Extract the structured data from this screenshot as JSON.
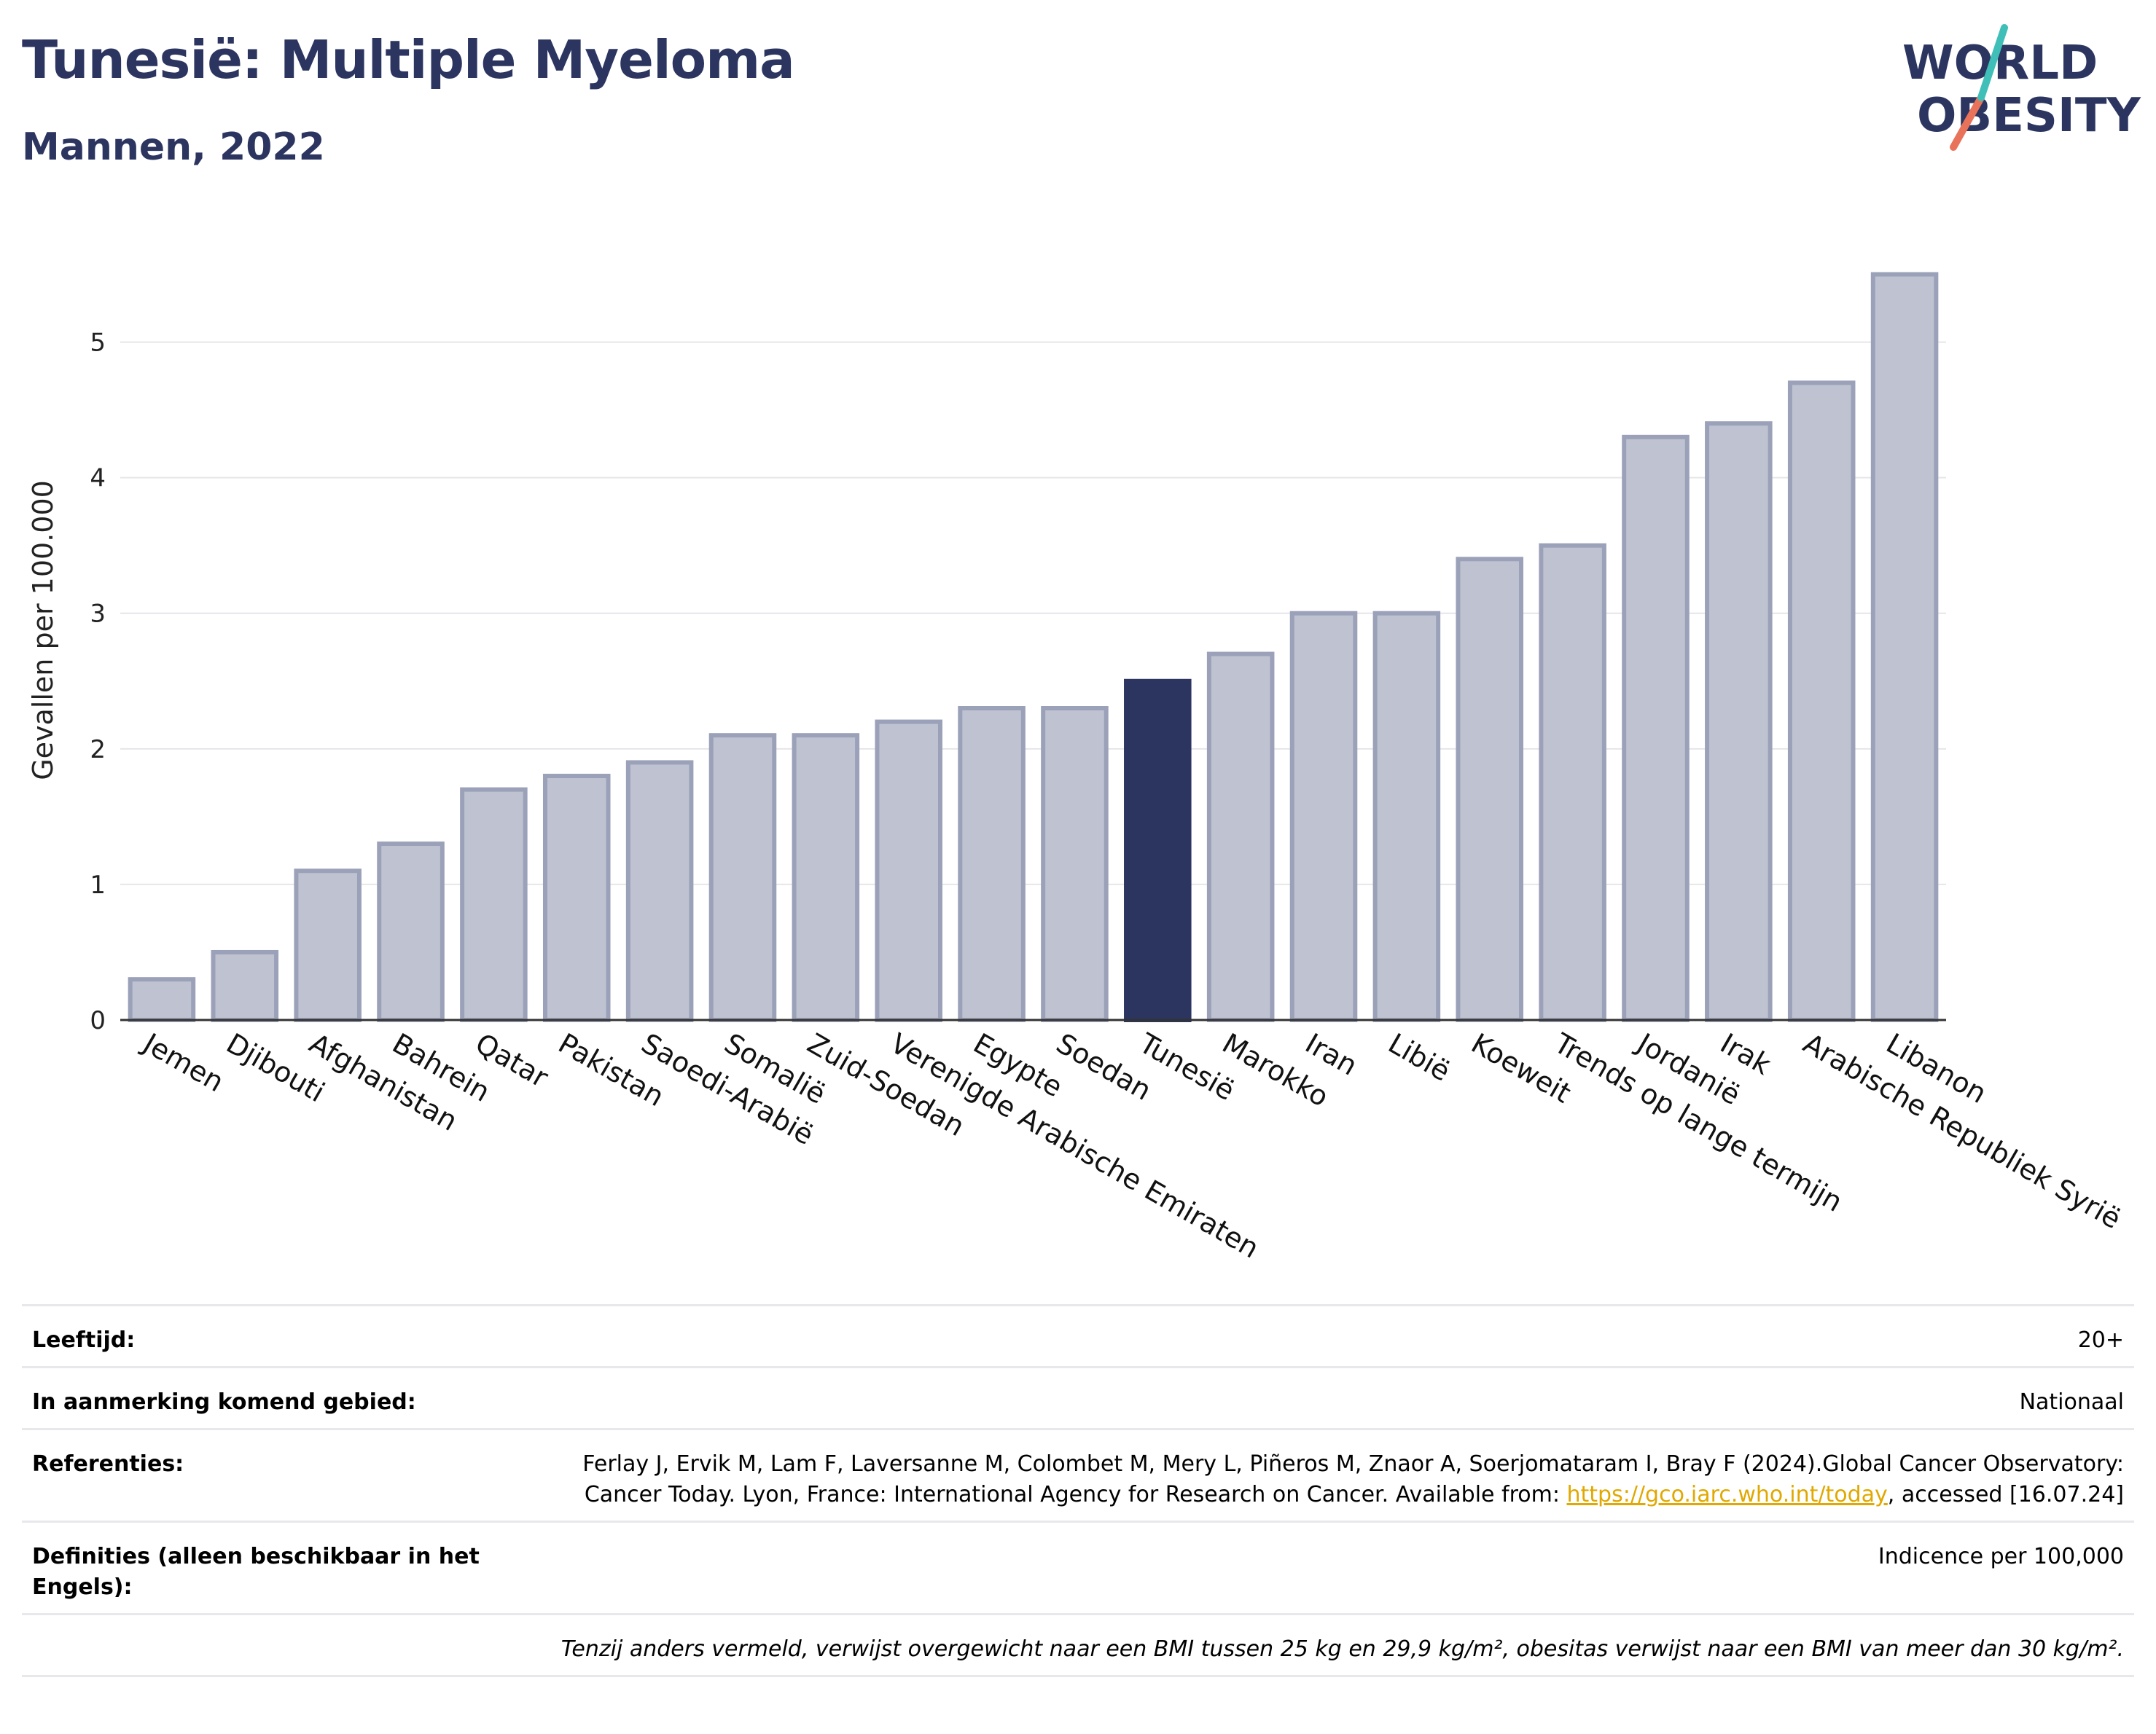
{
  "header": {
    "title": "Tunesië: Multiple Myeloma",
    "subtitle": "Mannen, 2022",
    "logo_line1": "WORLD",
    "logo_line2": "OBESITY"
  },
  "chart_data": {
    "type": "bar",
    "ylabel": "Gevallen per 100.000",
    "ylim": [
      0,
      5.75
    ],
    "yticks": [
      "0",
      "1",
      "2",
      "3",
      "4",
      "5"
    ],
    "grid": true,
    "categories": [
      "Jemen",
      "Djibouti",
      "Afghanistan",
      "Bahrein",
      "Qatar",
      "Pakistan",
      "Saoedi-Arabië",
      "Somalië",
      "Zuid-Soedan",
      "Verenigde Arabische Emiraten",
      "Egypte",
      "Soedan",
      "Tunesië",
      "Marokko",
      "Iran",
      "Libië",
      "Koeweit",
      "Trends op lange termijn",
      "Jordanië",
      "Irak",
      "Arabische Republiek Syrië",
      "Libanon"
    ],
    "values": [
      0.3,
      0.5,
      1.1,
      1.3,
      1.7,
      1.8,
      1.9,
      2.1,
      2.1,
      2.2,
      2.3,
      2.3,
      2.5,
      2.7,
      3.0,
      3.0,
      3.4,
      3.5,
      4.3,
      4.4,
      4.7,
      5.5
    ],
    "highlight": "Tunesië",
    "colors": {
      "bar": "#bfc3d1",
      "bar_edge": "#9ba1b8",
      "highlight": "#2b3560"
    }
  },
  "info": {
    "rows": [
      {
        "label": "Leeftijd:",
        "value": "20+"
      },
      {
        "label": "In aanmerking komend gebied:",
        "value": "Nationaal"
      },
      {
        "label": "Referenties:",
        "value": "Ferlay J, Ervik M, Lam F, Laversanne M, Colombet M, Mery L, Piñeros M, Znaor A, Soerjomataram I, Bray F (2024).Global Cancer Observatory: Cancer Today. Lyon, France: International Agency for Research on Cancer. Available from: ",
        "link": "https://gco.iarc.who.int/today",
        "suffix": ", accessed [16.07.24]"
      },
      {
        "label": "Definities (alleen beschikbaar in het Engels):",
        "value": "Indicence per 100,000"
      }
    ],
    "footnote": "Tenzij anders vermeld, verwijst overgewicht naar een BMI tussen 25 kg en 29,9 kg/m², obesitas verwijst naar een BMI van meer dan 30 kg/m²."
  }
}
